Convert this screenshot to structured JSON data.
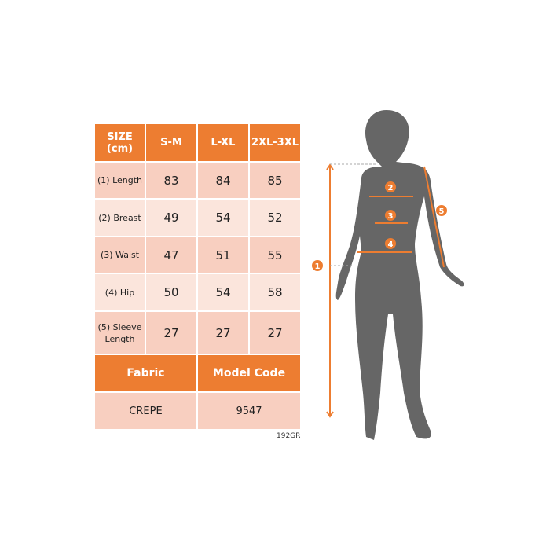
{
  "table": {
    "headers": [
      "SIZE (cm)",
      "S-M",
      "L-XL",
      "2XL-3XL"
    ],
    "rows": [
      {
        "label": "(1) Length",
        "values": [
          "83",
          "84",
          "85"
        ]
      },
      {
        "label": "(2) Breast",
        "values": [
          "49",
          "54",
          "52"
        ]
      },
      {
        "label": "(3) Waist",
        "values": [
          "47",
          "51",
          "55"
        ]
      },
      {
        "label": "(4) Hip",
        "values": [
          "50",
          "54",
          "58"
        ]
      },
      {
        "label": "(5) Sleeve Length",
        "values": [
          "27",
          "27",
          "27"
        ]
      }
    ],
    "fabric_header": "Fabric",
    "model_code_header": "Model Code",
    "fabric": "CREPE",
    "model_code": "9547"
  },
  "product_code": "192GR",
  "markers": [
    "1",
    "2",
    "3",
    "4",
    "5"
  ],
  "colors": {
    "accent": "#ED7D31",
    "silhouette": "#666666"
  }
}
